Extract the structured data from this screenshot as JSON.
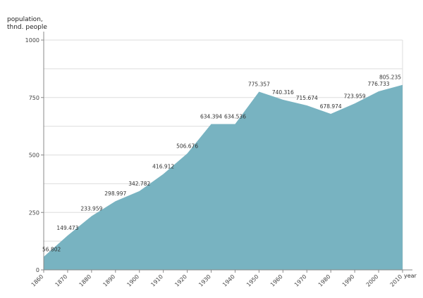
{
  "chart_data": {
    "type": "area",
    "ylabel_line1": "population,",
    "ylabel_line2": "thnd. people",
    "xlabel": "year",
    "ylim": [
      0,
      1000
    ],
    "yticks": [
      0,
      250,
      500,
      750,
      1000
    ],
    "x": [
      1860,
      1870,
      1880,
      1890,
      1900,
      1910,
      1920,
      1930,
      1940,
      1950,
      1960,
      1970,
      1980,
      1990,
      2000,
      2010
    ],
    "xtick_labels": [
      "1860",
      "1870",
      "1880",
      "1890",
      "1900",
      "1910",
      "1920",
      "1930",
      "1940",
      "1950",
      "1960",
      "1970",
      "1980",
      "1990",
      "2000",
      "2010"
    ],
    "points": [
      {
        "x": 1860,
        "y": 56.802,
        "label": "56.802"
      },
      {
        "x": 1870,
        "y": 149.473,
        "label": "149.473"
      },
      {
        "x": 1880,
        "y": 233.959,
        "label": "233.959"
      },
      {
        "x": 1890,
        "y": 298.997,
        "label": "298.997"
      },
      {
        "x": 1900,
        "y": 342.782,
        "label": "342.782"
      },
      {
        "x": 1910,
        "y": 416.912,
        "label": "416.912"
      },
      {
        "x": 1920,
        "y": 506.676,
        "label": "506.676"
      },
      {
        "x": 1930,
        "y": 634.394,
        "label": "634.394"
      },
      {
        "x": 1940,
        "y": 634.536,
        "label": "634.536"
      },
      {
        "x": 1950,
        "y": 775.357,
        "label": "775.357"
      },
      {
        "x": 1960,
        "y": 740.316,
        "label": "740.316"
      },
      {
        "x": 1970,
        "y": 715.674,
        "label": "715.674"
      },
      {
        "x": 1980,
        "y": 678.974,
        "label": "678.974"
      },
      {
        "x": 1990,
        "y": 723.959,
        "label": "723.959"
      },
      {
        "x": 2000,
        "y": 776.733,
        "label": "776.733"
      },
      {
        "x": 2010,
        "y": 805.235,
        "label": "805.235"
      }
    ],
    "fill_color": "#78b3c1",
    "grid": true,
    "legend": "none"
  }
}
